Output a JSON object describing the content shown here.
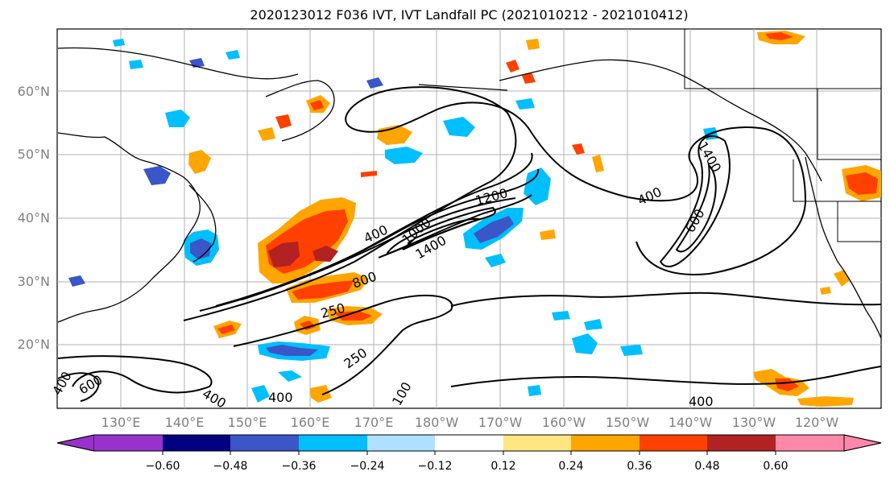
{
  "title": "2020123012 F036 IVT, IVT Landfall PC (2021010212 - 2021010412)",
  "lat_labels": [
    "60°N",
    "50°N",
    "40°N",
    "30°N",
    "20°N"
  ],
  "lon_labels": [
    "130°E",
    "140°E",
    "150°E",
    "160°E",
    "170°E",
    "180°W",
    "170°W",
    "160°W",
    "150°W",
    "140°W",
    "130°W",
    "120°W"
  ],
  "colorbar": {
    "colors": [
      "#9932cc",
      "#000080",
      "#3a56c8",
      "#00bfff",
      "#b0e0ff",
      "#ffffff",
      "#ffe680",
      "#ffa500",
      "#ff4000",
      "#b22222",
      "#ff88aa"
    ],
    "ticks": [
      "−0.60",
      "−0.48",
      "−0.36",
      "−0.24",
      "−0.12",
      "0.12",
      "0.24",
      "0.36",
      "0.48",
      "0.60"
    ]
  },
  "contour_labels": [
    "400",
    "1000",
    "1200",
    "1400",
    "800",
    "250",
    "250",
    "400",
    "1400",
    "600",
    "400",
    "600",
    "400",
    "400",
    "400",
    "100"
  ]
}
